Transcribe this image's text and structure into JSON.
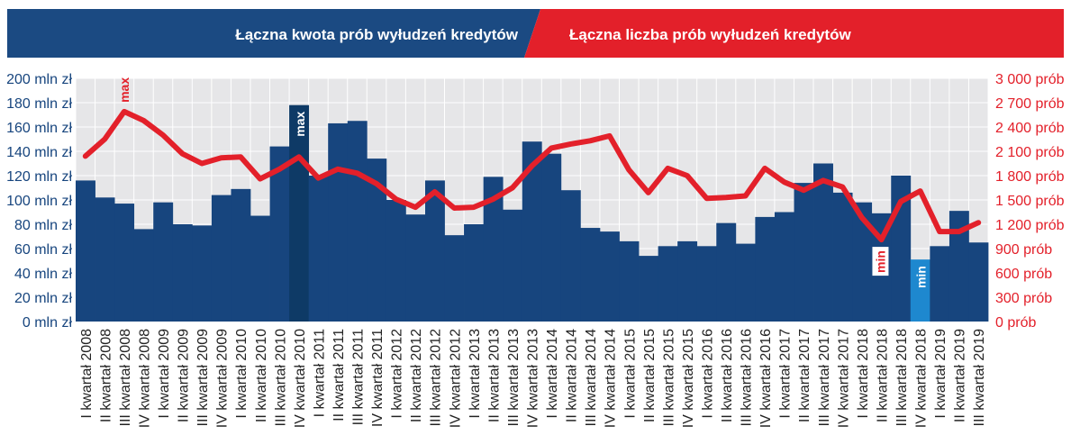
{
  "header": {
    "left_title": "Łączna kwota prób wyłudzeń kredytów",
    "right_title": "Łączna liczba prób wyłudzeń kredytów"
  },
  "colors": {
    "blue": "#17457E",
    "dark_header": "#1B4A82",
    "red": "#E3202A",
    "max_bar": "#0E3A66",
    "min_bar": "#1E88CF",
    "plot_bg": "#E6E6E8",
    "grid": "#FFFFFF"
  },
  "chart_data": {
    "type": "bar",
    "categories": [
      "I kwartał 2008",
      "II kwartał 2008",
      "III kwartał 2008",
      "IV kwartał 2008",
      "I kwartał 2009",
      "II kwartał 2009",
      "III kwartał 2009",
      "IV kwartał 2009",
      "I kwartał 2010",
      "II kwartał 2010",
      "III kwartał 2010",
      "IV kwartał 2010",
      "I kwartał 2011",
      "II kwartał 2011",
      "III kwartał 2011",
      "IV kwartał 2011",
      "I kwartał 2012",
      "II kwartał 2012",
      "III kwartał 2012",
      "IV kwartał 2012",
      "I kwartał 2013",
      "II kwartał 2013",
      "III kwartał 2013",
      "IV kwartał 2013",
      "I kwartał 2014",
      "II kwartał 2014",
      "III kwartał 2014",
      "IV kwartał 2014",
      "I kwartał 2015",
      "II kwartał 2015",
      "III kwartał 2015",
      "IV kwartał 2015",
      "I kwartał 2016",
      "II kwartał 2016",
      "III kwartał 2016",
      "IV kwartał 2016",
      "I kwartał 2017",
      "II kwartał 2017",
      "III kwartał 2017",
      "IV kwartał 2017",
      "I kwartał 2018",
      "II kwartał 2018",
      "III kwartał 2018",
      "IV kwartał 2018",
      "I kwartał 2019",
      "II kwartał 2019",
      "III kwartał 2019"
    ],
    "series": [
      {
        "axis": "left",
        "kind": "bar",
        "values": [
          116,
          102,
          97,
          76,
          98,
          80,
          79,
          104,
          109,
          87,
          144,
          178,
          120,
          163,
          165,
          134,
          100,
          88,
          116,
          71,
          80,
          119,
          92,
          148,
          138,
          108,
          77,
          74,
          66,
          54,
          62,
          66,
          62,
          81,
          64,
          86,
          90,
          114,
          130,
          106,
          98,
          89,
          120,
          51,
          62,
          91,
          65
        ]
      },
      {
        "axis": "right",
        "kind": "line",
        "values": [
          2040,
          2250,
          2590,
          2480,
          2300,
          2070,
          1950,
          2020,
          2030,
          1760,
          1880,
          2030,
          1770,
          1880,
          1830,
          1700,
          1510,
          1410,
          1600,
          1400,
          1410,
          1510,
          1650,
          1920,
          2140,
          2190,
          2230,
          2290,
          1870,
          1590,
          1890,
          1800,
          1520,
          1530,
          1550,
          1890,
          1720,
          1620,
          1740,
          1660,
          1280,
          1010,
          1480,
          1610,
          1110,
          1110,
          1220
        ]
      }
    ],
    "y_left": {
      "min": 0,
      "max": 200,
      "ticks": [
        "0 mln zł",
        "20 mln zł",
        "40 mln zł",
        "60 mln zł",
        "80 mln zł",
        "100 mln zł",
        "120 mln zł",
        "140 mln zł",
        "160 mln zł",
        "180 mln zł",
        "200 mln zł"
      ]
    },
    "y_right": {
      "min": 0,
      "max": 3000,
      "ticks": [
        "0 prób",
        "300 prób",
        "600 prób",
        "900 prób",
        "1 200 prób",
        "1 500 prób",
        "1 800 prób",
        "2 100 prób",
        "2 400 prób",
        "2 700 prób",
        "3 000 prób"
      ]
    },
    "annotations": [
      {
        "text": "max",
        "target": "bar",
        "index": 11
      },
      {
        "text": "min",
        "target": "bar",
        "index": 43
      },
      {
        "text": "max",
        "target": "line",
        "index": 2
      },
      {
        "text": "min",
        "target": "line",
        "index": 41
      }
    ],
    "highlight": {
      "max_bar_index": 11,
      "min_bar_index": 43
    },
    "grid": true
  }
}
